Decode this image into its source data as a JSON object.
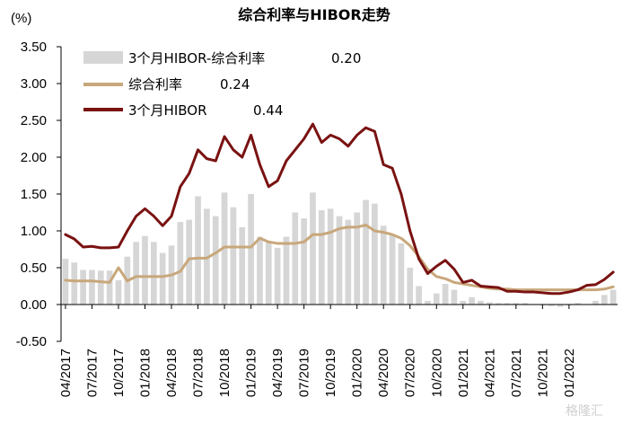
{
  "chart_data": {
    "type": "bar+line",
    "title": "综合利率与HIBOR走势",
    "unit_label": "(%)",
    "ylim": [
      -0.5,
      3.5
    ],
    "yticks": [
      "3.50",
      "3.00",
      "2.50",
      "2.00",
      "1.50",
      "1.00",
      "0.50",
      "0.00",
      "-0.50"
    ],
    "xtick_labels": [
      "04/2017",
      "07/2017",
      "10/2017",
      "01/2018",
      "04/2018",
      "07/2018",
      "10/2018",
      "01/2019",
      "04/2019",
      "07/2019",
      "10/2019",
      "01/2020",
      "04/2020",
      "07/2020",
      "10/2020",
      "01/2021",
      "04/2021",
      "07/2021",
      "10/2021",
      "01/2022"
    ],
    "legend": [
      {
        "label": "3个月HIBOR-综合利率",
        "value": "0.20",
        "color": "#d6d6d6",
        "kind": "bar"
      },
      {
        "label": "综合利率",
        "value": "0.24",
        "color": "#c8a77b",
        "kind": "line"
      },
      {
        "label": "3个月HIBOR",
        "value": "0.44",
        "color": "#7a1212",
        "kind": "line"
      }
    ],
    "series": [
      {
        "name": "3个月HIBOR-综合利率",
        "type": "bar",
        "color": "#d6d6d6",
        "values": [
          0.62,
          0.57,
          0.47,
          0.47,
          0.46,
          0.46,
          0.33,
          0.65,
          0.85,
          0.93,
          0.85,
          0.7,
          0.8,
          1.12,
          1.15,
          1.47,
          1.3,
          1.2,
          1.52,
          1.32,
          1.05,
          1.5,
          0.92,
          0.85,
          0.77,
          0.92,
          1.25,
          1.17,
          1.52,
          1.28,
          1.3,
          1.2,
          1.15,
          1.25,
          1.42,
          1.37,
          1.07,
          0.95,
          0.83,
          0.5,
          0.25,
          0.05,
          0.15,
          0.28,
          0.2,
          0.05,
          0.1,
          0.05,
          0.03,
          0.02,
          0.02,
          0.02,
          0.02,
          0.0,
          -0.01,
          -0.02,
          -0.03,
          -0.01,
          0.02,
          0.0,
          0.05,
          0.13,
          0.2
        ]
      },
      {
        "name": "综合利率",
        "type": "line",
        "color": "#c8a77b",
        "values": [
          0.33,
          0.32,
          0.32,
          0.32,
          0.31,
          0.3,
          0.5,
          0.32,
          0.38,
          0.38,
          0.38,
          0.38,
          0.4,
          0.45,
          0.62,
          0.63,
          0.63,
          0.7,
          0.78,
          0.78,
          0.78,
          0.78,
          0.9,
          0.85,
          0.83,
          0.83,
          0.83,
          0.85,
          0.95,
          0.95,
          0.98,
          1.03,
          1.05,
          1.05,
          1.08,
          1.0,
          0.98,
          0.95,
          0.9,
          0.8,
          0.65,
          0.48,
          0.38,
          0.35,
          0.3,
          0.28,
          0.26,
          0.24,
          0.22,
          0.21,
          0.21,
          0.2,
          0.2,
          0.2,
          0.2,
          0.2,
          0.2,
          0.2,
          0.2,
          0.2,
          0.2,
          0.21,
          0.24
        ]
      },
      {
        "name": "3个月HIBOR",
        "type": "line",
        "color": "#7a1212",
        "values": [
          0.95,
          0.89,
          0.78,
          0.79,
          0.77,
          0.77,
          0.78,
          1.0,
          1.2,
          1.3,
          1.2,
          1.07,
          1.2,
          1.6,
          1.78,
          2.1,
          1.98,
          1.95,
          2.28,
          2.1,
          2.0,
          2.3,
          1.9,
          1.6,
          1.68,
          1.95,
          2.1,
          2.25,
          2.45,
          2.2,
          2.3,
          2.25,
          2.15,
          2.3,
          2.4,
          2.35,
          1.9,
          1.85,
          1.5,
          1.0,
          0.62,
          0.42,
          0.52,
          0.6,
          0.48,
          0.3,
          0.33,
          0.25,
          0.24,
          0.23,
          0.18,
          0.18,
          0.17,
          0.17,
          0.16,
          0.15,
          0.15,
          0.17,
          0.2,
          0.26,
          0.27,
          0.34,
          0.44
        ]
      }
    ]
  },
  "watermark": "格隆汇"
}
